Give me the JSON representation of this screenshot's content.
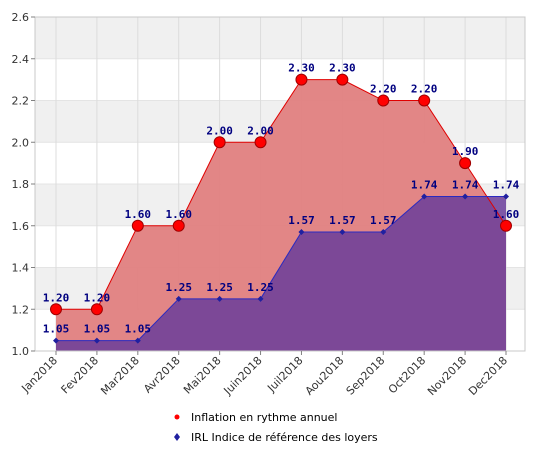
{
  "chart_data": {
    "type": "area",
    "categories": [
      "Jan2018",
      "Fev2018",
      "Mar2018",
      "Avr2018",
      "Mai2018",
      "Juin2018",
      "Juil2018",
      "Aou2018",
      "Sep2018",
      "Oct2018",
      "Nov2018",
      "Dec2018"
    ],
    "series": [
      {
        "name": "Inflation en rythme annuel",
        "values": [
          1.2,
          1.2,
          1.6,
          1.6,
          2.0,
          2.0,
          2.3,
          2.3,
          2.2,
          2.2,
          1.9,
          1.6
        ],
        "labels": [
          "1.20",
          "1.20",
          "1.60",
          "1.60",
          "2.00",
          "2.00",
          "2.30",
          "2.30",
          "2.20",
          "2.20",
          "1.90",
          "1.60"
        ],
        "fill": "#e08080",
        "line": "#e00000",
        "marker": "#ff0000"
      },
      {
        "name": "IRL Indice de référence des loyers",
        "values": [
          1.05,
          1.05,
          1.05,
          1.25,
          1.25,
          1.25,
          1.57,
          1.57,
          1.57,
          1.74,
          1.74,
          1.74
        ],
        "labels": [
          "1.05",
          "1.05",
          "1.05",
          "1.25",
          "1.25",
          "1.25",
          "1.57",
          "1.57",
          "1.57",
          "1.74",
          "1.74",
          "1.74"
        ],
        "fill": "#6a3d9a",
        "line": "#2a2ac0",
        "marker": "#2020a0"
      }
    ],
    "yticks": [
      "1.0",
      "1.2",
      "1.4",
      "1.6",
      "1.8",
      "2.0",
      "2.2",
      "2.4",
      "2.6"
    ],
    "ylim": [
      1.0,
      2.6
    ],
    "grid": true,
    "legend_position": "bottom"
  }
}
